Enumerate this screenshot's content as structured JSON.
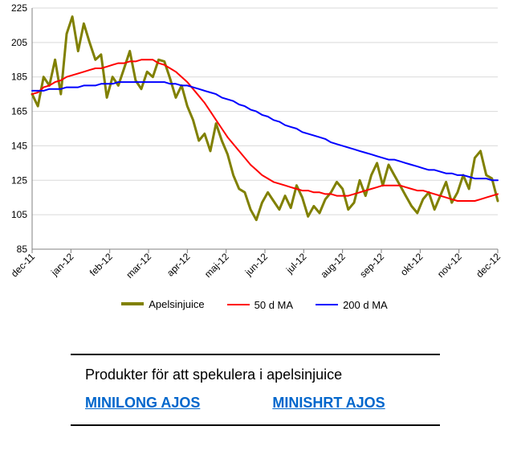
{
  "chart": {
    "type": "line",
    "background_color": "#ffffff",
    "grid_color": "#d9d9d9",
    "axis_color": "#808080",
    "label_fontsize": 12,
    "ylim": [
      85,
      225
    ],
    "ytick_step": 20,
    "yticks": [
      85,
      105,
      125,
      145,
      165,
      185,
      205,
      225
    ],
    "xlabels": [
      "dec-11",
      "jan-12",
      "feb-12",
      "mar-12",
      "apr-12",
      "maj-12",
      "jun-12",
      "jul-12",
      "aug-12",
      "sep-12",
      "okt-12",
      "nov-12",
      "dec-12"
    ],
    "series": [
      {
        "name": "Apelsinjuice",
        "color": "#808000",
        "line_width": 3,
        "data": [
          175,
          168,
          185,
          180,
          195,
          175,
          210,
          220,
          200,
          216,
          205,
          195,
          198,
          173,
          185,
          180,
          190,
          200,
          183,
          178,
          188,
          185,
          195,
          194,
          184,
          173,
          180,
          168,
          160,
          148,
          152,
          142,
          158,
          148,
          140,
          128,
          120,
          118,
          108,
          102,
          112,
          118,
          113,
          108,
          116,
          109,
          122,
          115,
          104,
          110,
          106,
          114,
          118,
          124,
          120,
          108,
          112,
          125,
          116,
          128,
          135,
          122,
          134,
          128,
          122,
          116,
          110,
          106,
          114,
          118,
          108,
          116,
          124,
          112,
          118,
          128,
          120,
          138,
          142,
          128,
          126,
          113
        ]
      },
      {
        "name": "50 d MA",
        "color": "#ff0000",
        "line_width": 2,
        "data": [
          175,
          176,
          179,
          180,
          182,
          183,
          185,
          186,
          187,
          188,
          189,
          190,
          190,
          191,
          192,
          193,
          193,
          194,
          194,
          195,
          195,
          195,
          193,
          192,
          190,
          188,
          185,
          182,
          178,
          174,
          170,
          165,
          160,
          155,
          150,
          146,
          142,
          138,
          134,
          131,
          128,
          126,
          124,
          123,
          122,
          121,
          120,
          119,
          119,
          118,
          118,
          117,
          117,
          116,
          116,
          116,
          117,
          118,
          119,
          120,
          121,
          122,
          122,
          122,
          122,
          121,
          120,
          119,
          119,
          118,
          117,
          116,
          115,
          114,
          113,
          113,
          113,
          113,
          114,
          115,
          116,
          117
        ]
      },
      {
        "name": "200 d MA",
        "color": "#0000ff",
        "line_width": 2,
        "data": [
          177,
          177,
          177,
          178,
          178,
          178,
          179,
          179,
          179,
          180,
          180,
          180,
          181,
          181,
          181,
          182,
          182,
          182,
          182,
          182,
          182,
          182,
          182,
          182,
          181,
          181,
          180,
          180,
          179,
          178,
          177,
          176,
          175,
          173,
          172,
          171,
          169,
          168,
          166,
          165,
          163,
          162,
          160,
          159,
          157,
          156,
          155,
          153,
          152,
          151,
          150,
          149,
          147,
          146,
          145,
          144,
          143,
          142,
          141,
          140,
          139,
          138,
          137,
          137,
          136,
          135,
          134,
          133,
          132,
          131,
          131,
          130,
          129,
          129,
          128,
          128,
          127,
          126,
          126,
          126,
          125,
          125
        ]
      }
    ],
    "legend": {
      "items": [
        {
          "label": "Apelsinjuice",
          "color": "#808000",
          "line_width": 4
        },
        {
          "label": "50 d MA",
          "color": "#ff0000",
          "line_width": 2
        },
        {
          "label": "200 d MA",
          "color": "#0000ff",
          "line_width": 2
        }
      ]
    }
  },
  "products": {
    "title": "Produkter för att spekulera i apelsinjuice",
    "links": [
      {
        "label": "MINILONG AJOS"
      },
      {
        "label": "MINISHRT AJOS"
      }
    ]
  }
}
